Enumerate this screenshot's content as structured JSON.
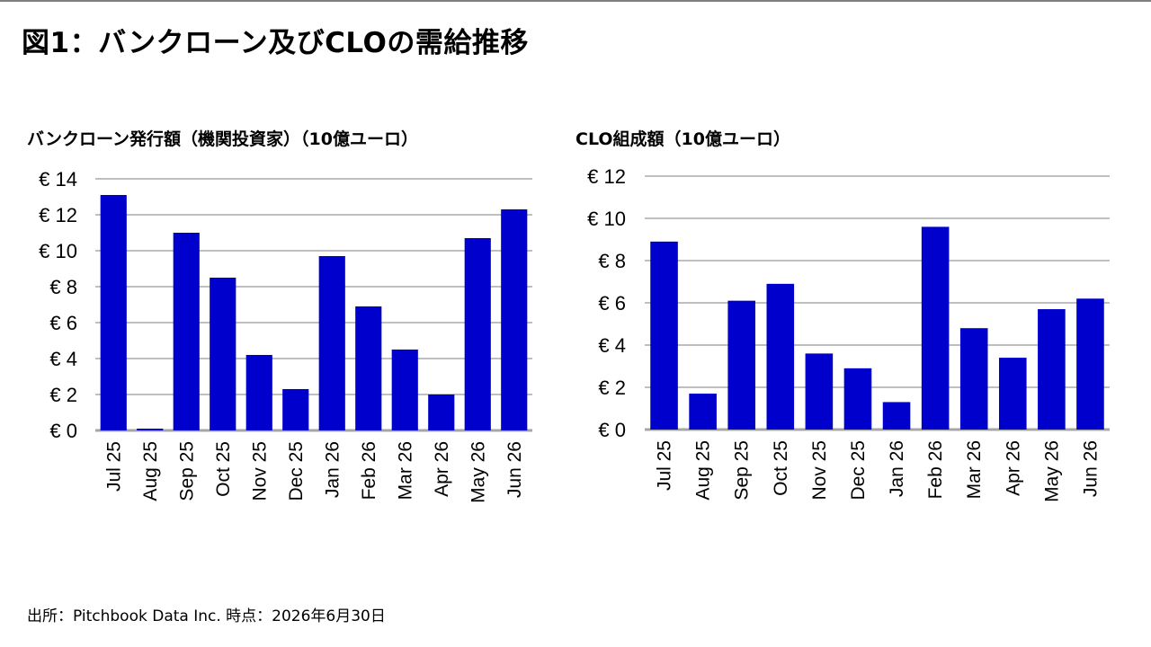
{
  "title": "図1：バンクローン及びCLOの需給推移",
  "source": "出所：Pitchbook Data Inc. 時点：2026年6月30日",
  "colors": {
    "bar": "#0000CC",
    "grid": "#BFBFBF",
    "axis": "#A6A6A6"
  },
  "chart_data": [
    {
      "type": "bar",
      "title": "バンクローン発行額（機関投資家）（10億ユーロ）",
      "categories": [
        "Jul 25",
        "Aug 25",
        "Sep 25",
        "Oct 25",
        "Nov 25",
        "Dec 25",
        "Jan 26",
        "Feb 26",
        "Mar 26",
        "Apr 26",
        "May 26",
        "Jun 26"
      ],
      "values": [
        13.1,
        0.1,
        11.0,
        8.5,
        4.2,
        2.3,
        9.7,
        6.9,
        4.5,
        2.0,
        10.7,
        12.3
      ],
      "ylim": [
        0,
        14
      ],
      "yticks": [
        0,
        2,
        4,
        6,
        8,
        10,
        12,
        14
      ],
      "ytick_labels": [
        "€ 0",
        "€ 2",
        "€ 4",
        "€ 6",
        "€ 8",
        "€ 10",
        "€ 12",
        "€ 14"
      ],
      "xlabel": "",
      "ylabel": "",
      "grid": true
    },
    {
      "type": "bar",
      "title": "CLO組成額（10億ユーロ）",
      "categories": [
        "Jul 25",
        "Aug 25",
        "Sep 25",
        "Oct 25",
        "Nov 25",
        "Dec 25",
        "Jan 26",
        "Feb 26",
        "Mar 26",
        "Apr 26",
        "May 26",
        "Jun 26"
      ],
      "values": [
        8.9,
        1.7,
        6.1,
        6.9,
        3.6,
        2.9,
        1.3,
        9.6,
        4.8,
        3.4,
        5.7,
        6.2
      ],
      "ylim": [
        0,
        12
      ],
      "yticks": [
        0,
        2,
        4,
        6,
        8,
        10,
        12
      ],
      "ytick_labels": [
        "€ 0",
        "€ 2",
        "€ 4",
        "€ 6",
        "€ 8",
        "€ 10",
        "€ 12"
      ],
      "xlabel": "",
      "ylabel": "",
      "grid": true
    }
  ]
}
